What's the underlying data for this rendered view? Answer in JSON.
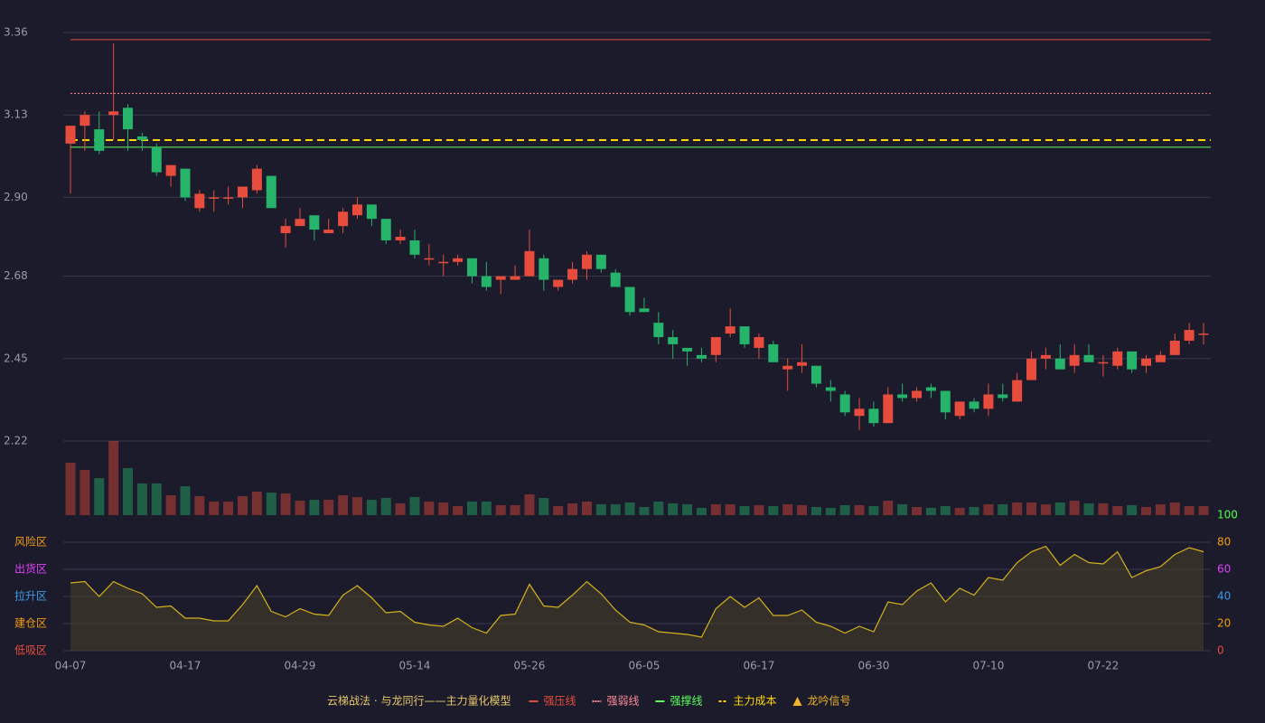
{
  "chart_data": {
    "type": "candlestick",
    "categories": [
      "04-07",
      null,
      null,
      null,
      null,
      null,
      null,
      null,
      "04-17",
      null,
      null,
      null,
      null,
      null,
      null,
      null,
      "04-29",
      null,
      null,
      null,
      null,
      null,
      null,
      null,
      "05-14",
      null,
      null,
      null,
      null,
      null,
      null,
      null,
      "05-26",
      null,
      null,
      null,
      null,
      null,
      null,
      null,
      "06-05",
      null,
      null,
      null,
      null,
      null,
      null,
      null,
      "06-17",
      null,
      null,
      null,
      null,
      null,
      null,
      null,
      "06-30",
      null,
      null,
      null,
      null,
      null,
      null,
      null,
      "07-10",
      null,
      null,
      null,
      null,
      null,
      null,
      null,
      "07-22",
      null,
      null,
      null,
      null,
      null,
      null,
      null
    ],
    "open": [
      3.05,
      3.1,
      3.09,
      3.13,
      3.15,
      3.07,
      3.04,
      2.96,
      2.98,
      2.87,
      2.9,
      2.9,
      2.9,
      2.92,
      2.96,
      2.8,
      2.82,
      2.85,
      2.8,
      2.82,
      2.85,
      2.88,
      2.84,
      2.78,
      2.78,
      2.73,
      2.72,
      2.72,
      2.73,
      2.68,
      2.67,
      2.67,
      2.68,
      2.73,
      2.65,
      2.67,
      2.7,
      2.74,
      2.69,
      2.65,
      2.59,
      2.55,
      2.51,
      2.48,
      2.46,
      2.46,
      2.52,
      2.54,
      2.48,
      2.49,
      2.42,
      2.43,
      2.43,
      2.37,
      2.35,
      2.29,
      2.31,
      2.27,
      2.35,
      2.34,
      2.37,
      2.36,
      2.29,
      2.33,
      2.31,
      2.35,
      2.33,
      2.39,
      2.45,
      2.45,
      2.43,
      2.46,
      2.44,
      2.43,
      2.47,
      2.43,
      2.44,
      2.46,
      2.5,
      2.52
    ],
    "close": [
      3.1,
      3.13,
      3.03,
      3.14,
      3.09,
      3.06,
      2.97,
      2.99,
      2.9,
      2.91,
      2.9,
      2.9,
      2.93,
      2.98,
      2.87,
      2.82,
      2.84,
      2.81,
      2.81,
      2.86,
      2.88,
      2.84,
      2.78,
      2.79,
      2.74,
      2.73,
      2.72,
      2.73,
      2.68,
      2.65,
      2.68,
      2.68,
      2.75,
      2.67,
      2.67,
      2.7,
      2.74,
      2.7,
      2.65,
      2.58,
      2.58,
      2.51,
      2.49,
      2.47,
      2.45,
      2.51,
      2.54,
      2.49,
      2.51,
      2.44,
      2.43,
      2.44,
      2.38,
      2.36,
      2.3,
      2.31,
      2.27,
      2.35,
      2.34,
      2.36,
      2.36,
      2.3,
      2.33,
      2.31,
      2.35,
      2.34,
      2.39,
      2.45,
      2.46,
      2.42,
      2.46,
      2.44,
      2.44,
      2.47,
      2.42,
      2.45,
      2.46,
      2.5,
      2.53,
      2.52
    ],
    "high": [
      3.1,
      3.14,
      3.14,
      3.33,
      3.16,
      3.08,
      3.05,
      2.99,
      2.98,
      2.92,
      2.92,
      2.93,
      2.93,
      2.99,
      2.96,
      2.84,
      2.87,
      2.85,
      2.84,
      2.87,
      2.9,
      2.88,
      2.84,
      2.81,
      2.81,
      2.77,
      2.74,
      2.74,
      2.73,
      2.72,
      2.68,
      2.71,
      2.81,
      2.74,
      2.67,
      2.72,
      2.75,
      2.74,
      2.7,
      2.65,
      2.62,
      2.58,
      2.53,
      2.48,
      2.48,
      2.51,
      2.59,
      2.54,
      2.52,
      2.5,
      2.45,
      2.49,
      2.43,
      2.39,
      2.36,
      2.34,
      2.33,
      2.37,
      2.38,
      2.37,
      2.38,
      2.36,
      2.33,
      2.34,
      2.38,
      2.38,
      2.41,
      2.47,
      2.48,
      2.49,
      2.49,
      2.49,
      2.46,
      2.48,
      2.47,
      2.46,
      2.47,
      2.52,
      2.55,
      2.55
    ],
    "low": [
      2.91,
      3.03,
      3.02,
      3.06,
      3.03,
      3.03,
      2.96,
      2.93,
      2.89,
      2.86,
      2.86,
      2.88,
      2.87,
      2.91,
      2.87,
      2.76,
      2.82,
      2.78,
      2.8,
      2.8,
      2.84,
      2.82,
      2.77,
      2.77,
      2.73,
      2.71,
      2.68,
      2.71,
      2.66,
      2.64,
      2.63,
      2.67,
      2.68,
      2.64,
      2.64,
      2.66,
      2.67,
      2.69,
      2.65,
      2.57,
      2.58,
      2.49,
      2.45,
      2.43,
      2.44,
      2.44,
      2.51,
      2.48,
      2.45,
      2.44,
      2.36,
      2.41,
      2.37,
      2.33,
      2.29,
      2.25,
      2.26,
      2.27,
      2.33,
      2.33,
      2.34,
      2.28,
      2.28,
      2.3,
      2.29,
      2.33,
      2.33,
      2.39,
      2.42,
      2.42,
      2.41,
      2.44,
      2.4,
      2.42,
      2.41,
      2.41,
      2.44,
      2.46,
      2.49,
      2.49
    ],
    "up_color": "#e74c3c",
    "down_color": "#26b36a",
    "ylim": [
      2.22,
      3.36
    ],
    "yticks": [
      3.36,
      3.13,
      {
        "value": 2.9,
        "label": "2.90"
      },
      2.68,
      2.45,
      2.22
    ],
    "grid": true,
    "volume": [
      58,
      50,
      41,
      82,
      52,
      35,
      35,
      22,
      32,
      21,
      15,
      15,
      21,
      26,
      25,
      24,
      16,
      17,
      17,
      22,
      20,
      17,
      19,
      13,
      20,
      15,
      14,
      10,
      15,
      15,
      11,
      11,
      23,
      19,
      10,
      13,
      15,
      12,
      12,
      14,
      9,
      15,
      13,
      12,
      8,
      12,
      12,
      10,
      11,
      10,
      12,
      11,
      9,
      8,
      11,
      11,
      10,
      16,
      12,
      9,
      8,
      10,
      8,
      9,
      12,
      12,
      14,
      14,
      12,
      14,
      16,
      13,
      13,
      10,
      11,
      9,
      12,
      14,
      10,
      10
    ],
    "oscillator": {
      "values": [
        50,
        51,
        40,
        51,
        46,
        42,
        32,
        33,
        24,
        24,
        22,
        22,
        34,
        48,
        29,
        25,
        31,
        27,
        26,
        41,
        48,
        39,
        28,
        29,
        21,
        19,
        18,
        24,
        17,
        13,
        26,
        27,
        49,
        33,
        32,
        41,
        51,
        42,
        30,
        21,
        19,
        14,
        13,
        12,
        10,
        31,
        40,
        32,
        39,
        26,
        26,
        30,
        21,
        18,
        13,
        18,
        14,
        36,
        34,
        44,
        50,
        36,
        46,
        41,
        54,
        52,
        65,
        73,
        77,
        63,
        71,
        65,
        64,
        73,
        54,
        59,
        62,
        71,
        76,
        73
      ],
      "color": "#d4b21c",
      "ylim": [
        0,
        100
      ],
      "yticks": [
        {
          "value": 0,
          "color": "#e74c3c"
        },
        {
          "value": 20,
          "color": "#f39c12"
        },
        {
          "value": 40,
          "color": "#3d9be9"
        },
        {
          "value": 60,
          "color": "#e040fb"
        },
        {
          "value": 80,
          "color": "#f39c12"
        },
        {
          "value": 100,
          "color": "#4cff4c"
        }
      ],
      "zones": [
        {
          "label": "风险区",
          "value": 80,
          "color": "#f39c12"
        },
        {
          "label": "出货区",
          "value": 60,
          "color": "#e040fb"
        },
        {
          "label": "拉升区",
          "value": 40,
          "color": "#3d9be9"
        },
        {
          "label": "建仓区",
          "value": 20,
          "color": "#f39c12"
        },
        {
          "label": "低吸区",
          "value": 0,
          "color": "#e74c3c"
        }
      ]
    },
    "levels": [
      {
        "name": "强压线",
        "value": 3.34,
        "color": "#e74c3c",
        "style": "solid"
      },
      {
        "name": "强弱线",
        "value": 3.19,
        "color": "#ff8a9a",
        "style": "dotted"
      },
      {
        "name": "强撑线",
        "value": 3.04,
        "color": "#5cff5c",
        "style": "solid"
      },
      {
        "name": "主力成本",
        "value": 3.06,
        "color": "#ffd700",
        "style": "dashed"
      }
    ],
    "signal": {
      "name": "龙吟信号",
      "color": "#f0b429"
    },
    "title": "云梯战法 · 与龙同行——主力量化模型"
  }
}
